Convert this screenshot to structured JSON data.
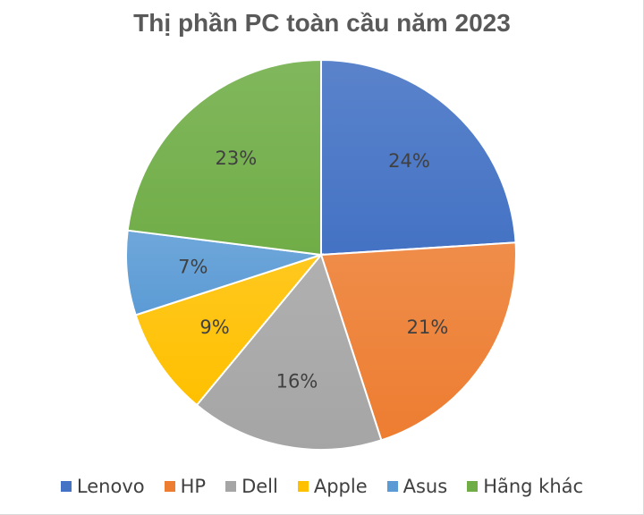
{
  "chart_data": {
    "type": "pie",
    "title": "Thị phần PC toàn cầu năm 2023",
    "legend_position": "bottom",
    "slices": [
      {
        "name": "Lenovo",
        "value": 24,
        "label": "24%",
        "color": "#4472C4"
      },
      {
        "name": "HP",
        "value": 21,
        "label": "21%",
        "color": "#ED7D31"
      },
      {
        "name": "Dell",
        "value": 16,
        "label": "16%",
        "color": "#A5A5A5"
      },
      {
        "name": "Apple",
        "value": 9,
        "label": "9%",
        "color": "#FFC000"
      },
      {
        "name": "Asus",
        "value": 7,
        "label": "7%",
        "color": "#5B9BD5"
      },
      {
        "name": "Hãng khác",
        "value": 23,
        "label": "23%",
        "color": "#70AD47"
      }
    ]
  }
}
